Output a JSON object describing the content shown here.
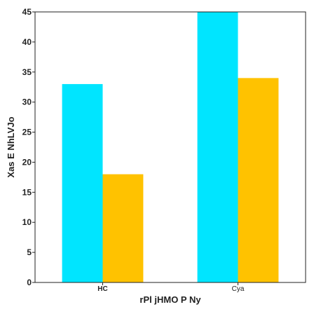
{
  "chart_data": {
    "type": "bar",
    "categories": [
      "HC",
      "Cya"
    ],
    "series": [
      {
        "values": [
          33,
          45
        ],
        "color": "#00e5ff"
      },
      {
        "values": [
          18,
          34
        ],
        "color": "#ffc200"
      }
    ],
    "xlabel": "rPl jHMO  P Ny",
    "ylabel": "Xas E NhLVJo",
    "ylim": [
      0,
      45
    ],
    "yticks": [
      0,
      5,
      10,
      15,
      20,
      25,
      30,
      35,
      40,
      45
    ],
    "grid": false
  }
}
